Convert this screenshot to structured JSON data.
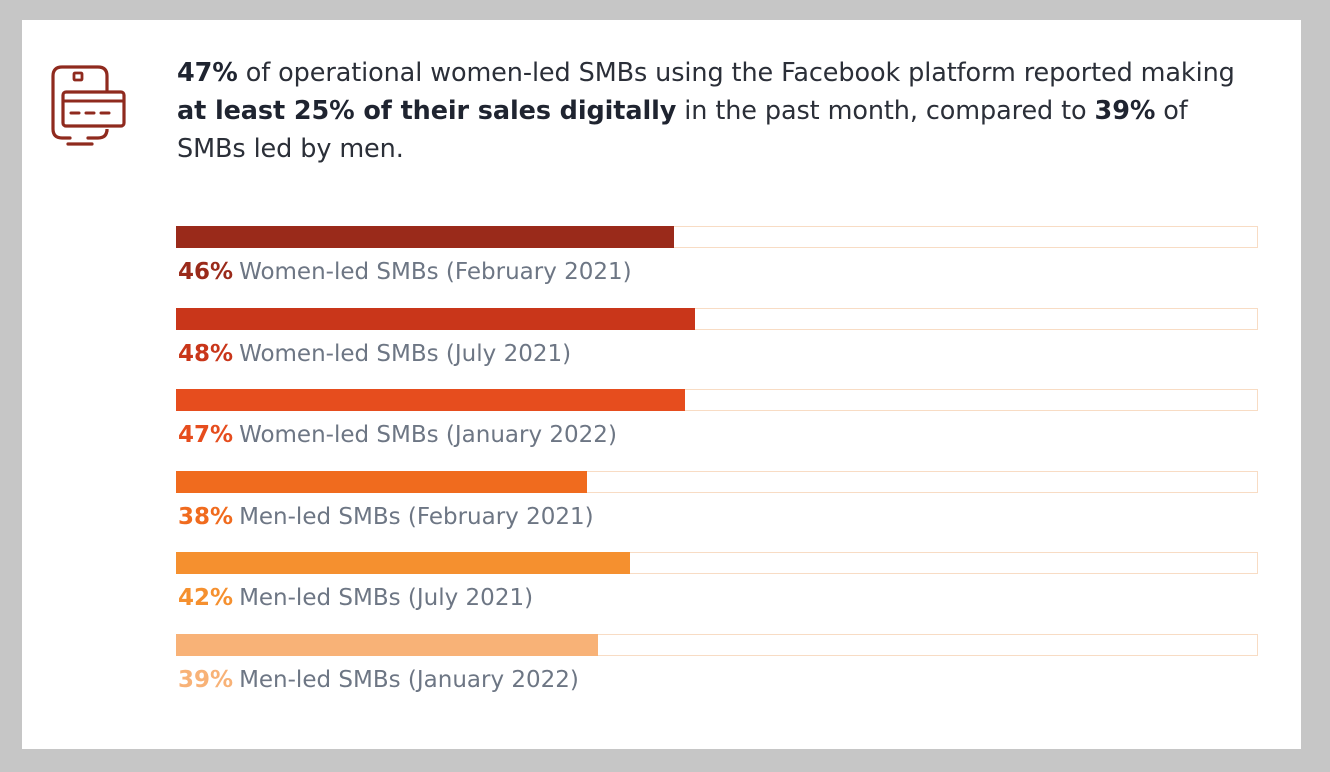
{
  "headline": {
    "p1": "47%",
    "p2": " of operational women-led SMBs using the Facebook platform reported making ",
    "p3": "at least 25% of their sales digitally",
    "p4": " in the past month, compared to ",
    "p5": "39%",
    "p6": " of SMBs led by men."
  },
  "icon": "mobile-payment-card-icon",
  "colors": {
    "icon": "#8f2a1e",
    "track_border": "#f8dcc4",
    "label_text": "#6d7684"
  },
  "chart_data": {
    "type": "bar",
    "orientation": "horizontal",
    "xlim": [
      0,
      100
    ],
    "categories": [
      "Women-led SMBs (February 2021)",
      "Women-led SMBs (July 2021)",
      "Women-led SMBs (January 2022)",
      "Men-led SMBs (February 2021)",
      "Men-led SMBs (July 2021)",
      "Men-led SMBs (January 2022)"
    ],
    "values": [
      46,
      48,
      47,
      38,
      42,
      39
    ],
    "value_labels": [
      "46%",
      "48%",
      "47%",
      "38%",
      "42%",
      "39%"
    ],
    "bar_colors": [
      "#9a2a1a",
      "#c9361a",
      "#e64d1e",
      "#f06b1e",
      "#f5902f",
      "#f8b277"
    ],
    "grid": false,
    "legend": "none"
  }
}
